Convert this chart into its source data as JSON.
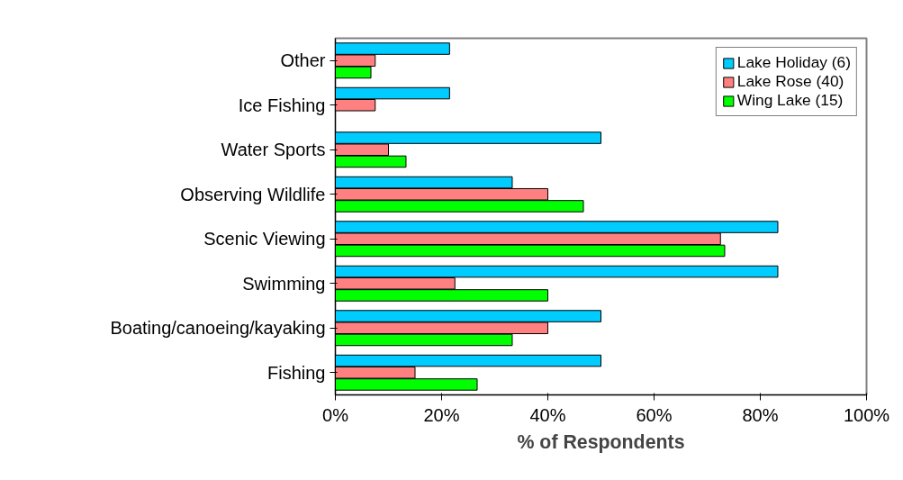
{
  "chart_data": {
    "type": "bar",
    "orientation": "horizontal",
    "xlabel": "% of Respondents",
    "categories": [
      "Other",
      "Ice Fishing",
      "Water Sports",
      "Observing Wildlife",
      "Scenic Viewing",
      "Swimming",
      "Boating/canoeing/kayaking",
      "Fishing"
    ],
    "series": [
      {
        "name": "Lake Holiday (6)",
        "color": "#00ccff",
        "values": [
          21.5,
          21.5,
          50,
          33.3,
          83.3,
          83.3,
          50,
          50
        ]
      },
      {
        "name": "Lake Rose (40)",
        "color": "#ff8080",
        "values": [
          7.5,
          7.5,
          10,
          40,
          72.5,
          22.5,
          40,
          15
        ]
      },
      {
        "name": "Wing Lake (15)",
        "color": "#00ff00",
        "values": [
          6.7,
          null,
          13.3,
          46.7,
          73.3,
          40,
          33.3,
          26.7
        ]
      }
    ],
    "xlim": [
      0,
      100
    ],
    "xticks": [
      {
        "value": 0,
        "label": "0%"
      },
      {
        "value": 20,
        "label": "20%"
      },
      {
        "value": 40,
        "label": "40%"
      },
      {
        "value": 60,
        "label": "60%"
      },
      {
        "value": 80,
        "label": "80%"
      },
      {
        "value": 100,
        "label": "100%"
      }
    ],
    "grid": false,
    "legend": "top right"
  }
}
